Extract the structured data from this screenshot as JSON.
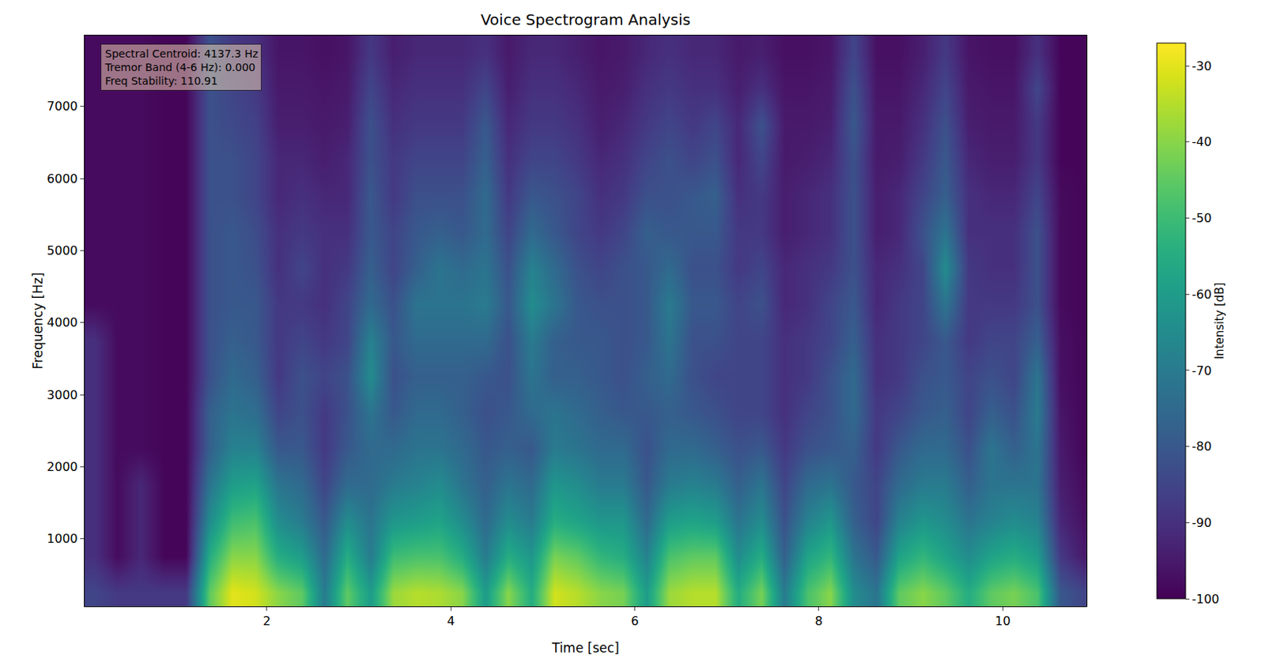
{
  "chart_data": {
    "type": "heatmap",
    "title": "Voice Spectrogram Analysis",
    "x_label": "Time [sec]",
    "y_label": "Frequency [Hz]",
    "colorbar_label": "Intensity [dB]",
    "annotations": [
      "Spectral Centroid: 4137.3 Hz",
      "Tremor Band (4-6 Hz): 0.000",
      "Freq Stability: 110.91"
    ],
    "xlim": [
      0.02,
      10.91
    ],
    "xticks": [
      2,
      4,
      6,
      8,
      10
    ],
    "ylim": [
      62,
      7985
    ],
    "yticks": [
      1000,
      2000,
      3000,
      4000,
      5000,
      6000,
      7000
    ],
    "zlim": [
      -100,
      -27
    ],
    "zticks": [
      -30,
      -40,
      -50,
      -60,
      -70,
      -80,
      -90,
      -100
    ],
    "color": "Viridis",
    "x": [
      0.125,
      0.375,
      0.625,
      0.875,
      1.125,
      1.375,
      1.625,
      1.875,
      2.125,
      2.375,
      2.625,
      2.875,
      3.125,
      3.375,
      3.625,
      3.875,
      4.125,
      4.375,
      4.625,
      4.875,
      5.125,
      5.375,
      5.625,
      5.875,
      6.125,
      6.375,
      6.625,
      6.875,
      7.125,
      7.375,
      7.625,
      7.875,
      8.125,
      8.375,
      8.625,
      8.875,
      9.125,
      9.375,
      9.625,
      9.875,
      10.125,
      10.375,
      10.625,
      10.875
    ],
    "y": [
      250,
      750,
      1250,
      1750,
      2250,
      2750,
      3250,
      3750,
      4250,
      4750,
      5250,
      5750,
      6250,
      6750,
      7250,
      7750
    ],
    "z": [
      [
        -85,
        -90,
        -90,
        -90,
        -90,
        -90,
        -90,
        -90,
        -98,
        -98,
        -98,
        -98,
        -98,
        -98,
        -98,
        -98
      ],
      [
        -88,
        -98,
        -98,
        -98,
        -98,
        -98,
        -98,
        -98,
        -98,
        -98,
        -98,
        -98,
        -98,
        -98,
        -98,
        -98
      ],
      [
        -88,
        -92,
        -92,
        -92,
        -98,
        -98,
        -98,
        -98,
        -98,
        -98,
        -98,
        -98,
        -98,
        -98,
        -98,
        -98
      ],
      [
        -88,
        -99,
        -99,
        -99,
        -99,
        -99,
        -99,
        -99,
        -99,
        -99,
        -99,
        -99,
        -99,
        -99,
        -99,
        -99
      ],
      [
        -88,
        -99,
        -99,
        -99,
        -99,
        -99,
        -99,
        -99,
        -99,
        -99,
        -99,
        -99,
        -99,
        -99,
        -99,
        -99
      ],
      [
        -45,
        -55,
        -65,
        -72,
        -78,
        -78,
        -82,
        -82,
        -82,
        -82,
        -82,
        -82,
        -82,
        -82,
        -82,
        -82
      ],
      [
        -30,
        -40,
        -50,
        -60,
        -68,
        -72,
        -75,
        -78,
        -80,
        -80,
        -80,
        -82,
        -82,
        -84,
        -85,
        -88
      ],
      [
        -32,
        -40,
        -48,
        -58,
        -68,
        -74,
        -78,
        -80,
        -80,
        -82,
        -83,
        -85,
        -85,
        -86,
        -88,
        -90
      ],
      [
        -40,
        -55,
        -65,
        -72,
        -80,
        -85,
        -88,
        -88,
        -88,
        -90,
        -90,
        -92,
        -92,
        -94,
        -95,
        -96
      ],
      [
        -45,
        -60,
        -70,
        -75,
        -80,
        -82,
        -82,
        -85,
        -88,
        -85,
        -88,
        -90,
        -92,
        -94,
        -95,
        -96
      ],
      [
        -70,
        -75,
        -80,
        -85,
        -88,
        -88,
        -85,
        -88,
        -90,
        -90,
        -90,
        -92,
        -94,
        -95,
        -96,
        -97
      ],
      [
        -45,
        -55,
        -65,
        -75,
        -80,
        -82,
        -82,
        -85,
        -85,
        -88,
        -90,
        -92,
        -92,
        -94,
        -95,
        -96
      ],
      [
        -60,
        -70,
        -72,
        -75,
        -75,
        -72,
        -65,
        -68,
        -75,
        -78,
        -80,
        -80,
        -82,
        -82,
        -85,
        -88
      ],
      [
        -38,
        -50,
        -62,
        -70,
        -75,
        -80,
        -82,
        -80,
        -82,
        -85,
        -85,
        -88,
        -88,
        -90,
        -92,
        -94
      ],
      [
        -35,
        -48,
        -60,
        -68,
        -72,
        -75,
        -78,
        -75,
        -72,
        -78,
        -80,
        -82,
        -85,
        -88,
        -90,
        -92
      ],
      [
        -36,
        -48,
        -58,
        -65,
        -72,
        -75,
        -78,
        -75,
        -72,
        -72,
        -78,
        -82,
        -85,
        -88,
        -90,
        -92
      ],
      [
        -40,
        -55,
        -65,
        -72,
        -75,
        -78,
        -78,
        -75,
        -72,
        -75,
        -80,
        -82,
        -85,
        -88,
        -90,
        -92
      ],
      [
        -60,
        -70,
        -75,
        -78,
        -80,
        -82,
        -80,
        -75,
        -70,
        -72,
        -75,
        -75,
        -78,
        -80,
        -85,
        -90
      ],
      [
        -40,
        -55,
        -65,
        -72,
        -78,
        -80,
        -82,
        -82,
        -80,
        -82,
        -85,
        -88,
        -90,
        -92,
        -94,
        -95
      ],
      [
        -55,
        -62,
        -70,
        -75,
        -80,
        -75,
        -72,
        -70,
        -65,
        -68,
        -75,
        -80,
        -85,
        -88,
        -90,
        -92
      ],
      [
        -32,
        -42,
        -55,
        -62,
        -70,
        -72,
        -78,
        -78,
        -72,
        -75,
        -80,
        -82,
        -85,
        -88,
        -90,
        -92
      ],
      [
        -35,
        -45,
        -58,
        -65,
        -72,
        -75,
        -78,
        -80,
        -80,
        -82,
        -85,
        -85,
        -88,
        -90,
        -92,
        -94
      ],
      [
        -40,
        -52,
        -62,
        -70,
        -75,
        -78,
        -80,
        -80,
        -82,
        -85,
        -88,
        -90,
        -92,
        -94,
        -95,
        -96
      ],
      [
        -42,
        -55,
        -62,
        -70,
        -75,
        -80,
        -82,
        -82,
        -82,
        -82,
        -85,
        -88,
        -90,
        -92,
        -94,
        -95
      ],
      [
        -60,
        -68,
        -75,
        -80,
        -82,
        -80,
        -78,
        -80,
        -80,
        -80,
        -78,
        -82,
        -85,
        -88,
        -90,
        -92
      ],
      [
        -38,
        -48,
        -60,
        -70,
        -75,
        -78,
        -75,
        -72,
        -70,
        -75,
        -80,
        -82,
        -82,
        -85,
        -88,
        -90
      ],
      [
        -35,
        -45,
        -58,
        -68,
        -75,
        -80,
        -82,
        -82,
        -80,
        -82,
        -80,
        -80,
        -85,
        -88,
        -90,
        -92
      ],
      [
        -35,
        -45,
        -60,
        -70,
        -78,
        -82,
        -85,
        -82,
        -80,
        -82,
        -80,
        -78,
        -82,
        -85,
        -90,
        -92
      ],
      [
        -55,
        -65,
        -72,
        -78,
        -82,
        -85,
        -85,
        -85,
        -85,
        -88,
        -88,
        -90,
        -92,
        -92,
        -94,
        -95
      ],
      [
        -42,
        -55,
        -65,
        -72,
        -80,
        -85,
        -85,
        -85,
        -82,
        -85,
        -88,
        -88,
        -85,
        -82,
        -90,
        -94
      ],
      [
        -70,
        -78,
        -82,
        -85,
        -88,
        -90,
        -90,
        -90,
        -92,
        -92,
        -94,
        -94,
        -95,
        -95,
        -96,
        -97
      ],
      [
        -48,
        -58,
        -68,
        -75,
        -82,
        -85,
        -88,
        -88,
        -90,
        -90,
        -92,
        -92,
        -94,
        -95,
        -96,
        -97
      ],
      [
        -40,
        -52,
        -62,
        -72,
        -80,
        -82,
        -82,
        -85,
        -85,
        -88,
        -90,
        -90,
        -92,
        -94,
        -95,
        -96
      ],
      [
        -65,
        -72,
        -78,
        -80,
        -78,
        -75,
        -75,
        -78,
        -80,
        -82,
        -82,
        -82,
        -82,
        -80,
        -82,
        -85
      ],
      [
        -72,
        -80,
        -85,
        -85,
        -88,
        -88,
        -90,
        -90,
        -92,
        -92,
        -94,
        -94,
        -95,
        -95,
        -96,
        -97
      ],
      [
        -45,
        -58,
        -68,
        -75,
        -80,
        -85,
        -88,
        -88,
        -88,
        -90,
        -92,
        -92,
        -94,
        -95,
        -96,
        -97
      ],
      [
        -40,
        -52,
        -62,
        -70,
        -75,
        -80,
        -82,
        -85,
        -85,
        -85,
        -82,
        -85,
        -88,
        -90,
        -92,
        -94
      ],
      [
        -45,
        -58,
        -65,
        -70,
        -75,
        -78,
        -80,
        -80,
        -72,
        -65,
        -72,
        -78,
        -80,
        -82,
        -85,
        -88
      ],
      [
        -55,
        -65,
        -72,
        -78,
        -82,
        -85,
        -85,
        -88,
        -88,
        -88,
        -90,
        -90,
        -92,
        -94,
        -95,
        -96
      ],
      [
        -45,
        -58,
        -68,
        -72,
        -72,
        -78,
        -82,
        -85,
        -88,
        -90,
        -90,
        -92,
        -94,
        -95,
        -96,
        -97
      ],
      [
        -42,
        -55,
        -65,
        -72,
        -78,
        -82,
        -85,
        -85,
        -88,
        -90,
        -90,
        -92,
        -94,
        -95,
        -96,
        -97
      ],
      [
        -48,
        -60,
        -68,
        -72,
        -72,
        -70,
        -72,
        -78,
        -82,
        -82,
        -82,
        -85,
        -88,
        -88,
        -85,
        -90
      ],
      [
        -80,
        -88,
        -92,
        -94,
        -95,
        -96,
        -97,
        -97,
        -98,
        -98,
        -98,
        -98,
        -99,
        -99,
        -99,
        -99
      ],
      [
        -85,
        -95,
        -97,
        -98,
        -99,
        -99,
        -99,
        -99,
        -99,
        -99,
        -99,
        -99,
        -99,
        -99,
        -99,
        -99
      ]
    ]
  }
}
